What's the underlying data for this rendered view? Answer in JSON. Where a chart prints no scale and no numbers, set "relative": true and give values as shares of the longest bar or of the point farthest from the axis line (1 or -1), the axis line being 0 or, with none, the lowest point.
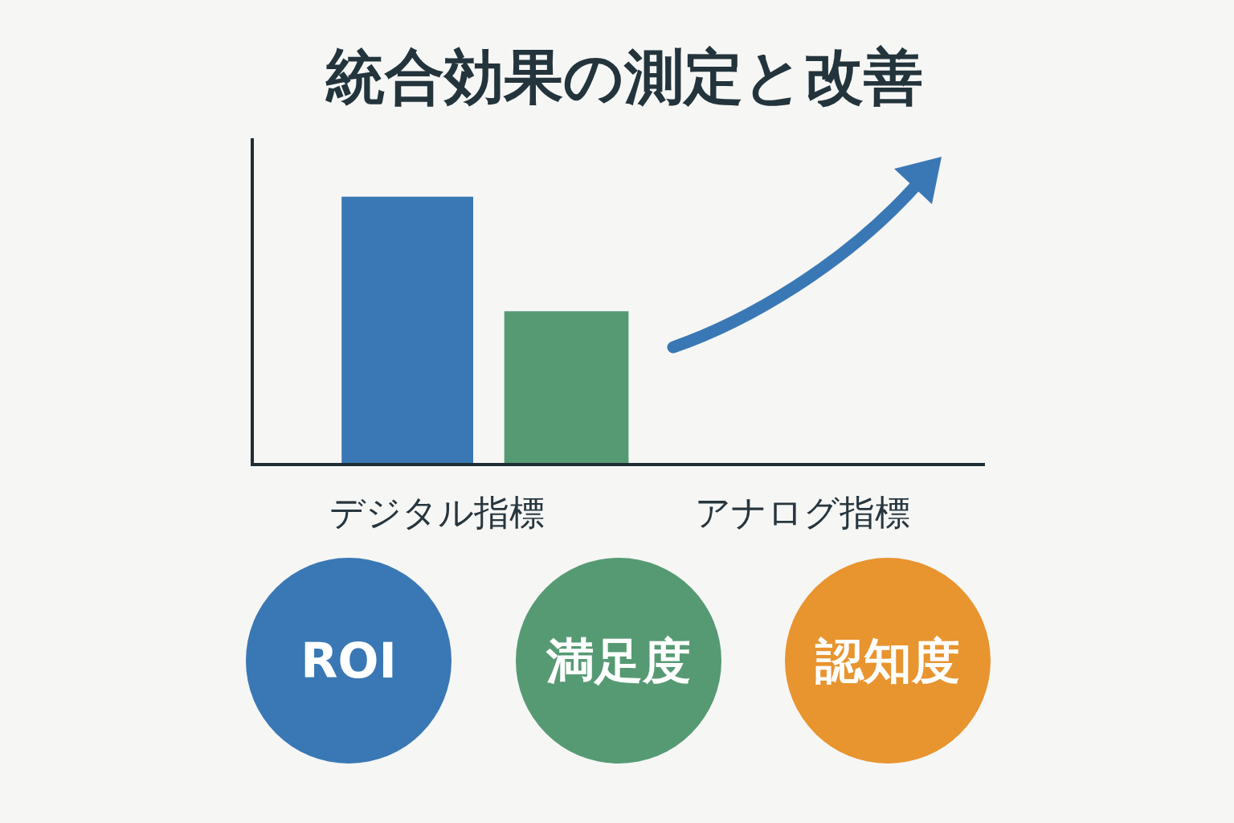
{
  "chart_data": {
    "type": "bar",
    "title": "統合効果の測定と改善",
    "categories": [
      "デジタル指標",
      "アナログ指標"
    ],
    "relative": true,
    "series": [
      {
        "color": "#3a78b5",
        "values": [
          1,
          null
        ]
      },
      {
        "color": "#569a74",
        "values": [
          0.57,
          null
        ]
      }
    ],
    "annotations": [
      "ROI",
      "満足度",
      "認知度"
    ]
  }
}
